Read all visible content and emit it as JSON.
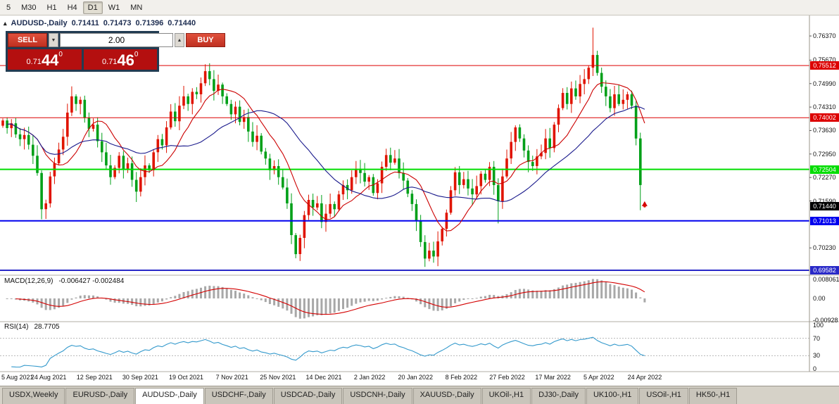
{
  "toolbar": {
    "timeframes": [
      "5",
      "M30",
      "H1",
      "H4",
      "D1",
      "W1",
      "MN"
    ],
    "active": "D1"
  },
  "quote": {
    "toggle_icon": "▴",
    "symbol": "AUDUSD-,Daily",
    "open": "0.71411",
    "high": "0.71473",
    "low": "0.71396",
    "close": "0.71440"
  },
  "one_click": {
    "sell_label": "SELL",
    "buy_label": "BUY",
    "volume": "2.00",
    "spin_down_icon": "▼",
    "spin_up_icon": "▲",
    "sell_price": {
      "prefix": "0.71",
      "big": "44",
      "sup": "0"
    },
    "buy_price": {
      "prefix": "0.71",
      "big": "46",
      "sup": "0"
    }
  },
  "chart_data": {
    "type": "candlestick",
    "symbol": "AUDUSD-",
    "timeframe": "Daily",
    "ohlc_current": {
      "open": 0.71411,
      "high": 0.71473,
      "low": 0.71396,
      "close": 0.7144
    },
    "ylim": [
      0.695,
      0.768
    ],
    "y_ticks": [
      "0.76370",
      "0.75670",
      "0.74990",
      "0.74310",
      "0.73630",
      "0.72950",
      "0.72270",
      "0.71590",
      "0.70230"
    ],
    "x_labels": [
      "5 Aug 2021",
      "24 Aug 2021",
      "12 Sep 2021",
      "30 Sep 2021",
      "19 Oct 2021",
      "7 Nov 2021",
      "25 Nov 2021",
      "14 Dec 2021",
      "2 Jan 2022",
      "20 Jan 2022",
      "8 Feb 2022",
      "27 Feb 2022",
      "17 Mar 2022",
      "5 Apr 2022",
      "24 Apr 2022"
    ],
    "closes": [
      0.7392,
      0.737,
      0.7384,
      0.7352,
      0.7338,
      0.735,
      0.7322,
      0.729,
      0.724,
      0.7135,
      0.7152,
      0.723,
      0.7268,
      0.7308,
      0.7345,
      0.7415,
      0.7462,
      0.744,
      0.7452,
      0.74,
      0.7368,
      0.738,
      0.7332,
      0.73,
      0.7262,
      0.7228,
      0.7255,
      0.729,
      0.725,
      0.7268,
      0.722,
      0.7186,
      0.7228,
      0.7262,
      0.7248,
      0.73,
      0.7338,
      0.732,
      0.7372,
      0.7418,
      0.739,
      0.7435,
      0.7462,
      0.744,
      0.7475,
      0.7468,
      0.75,
      0.7535,
      0.7512,
      0.7478,
      0.7496,
      0.7462,
      0.744,
      0.741,
      0.7432,
      0.7388,
      0.7402,
      0.736,
      0.733,
      0.7348,
      0.7302,
      0.7282,
      0.7248,
      0.726,
      0.7228,
      0.7198,
      0.7152,
      0.706,
      0.7005,
      0.7052,
      0.7118,
      0.7162,
      0.714,
      0.7152,
      0.7098,
      0.7122,
      0.715,
      0.7135,
      0.7178,
      0.7205,
      0.719,
      0.7228,
      0.7252,
      0.724,
      0.7215,
      0.7228,
      0.7182,
      0.721,
      0.7258,
      0.7292,
      0.727,
      0.7282,
      0.724,
      0.7218,
      0.718,
      0.715,
      0.7102,
      0.704,
      0.6992,
      0.7015,
      0.6998,
      0.7042,
      0.7078,
      0.7125,
      0.719,
      0.7242,
      0.7205,
      0.7222,
      0.7195,
      0.7178,
      0.7202,
      0.7238,
      0.722,
      0.7258,
      0.7205,
      0.7158,
      0.723,
      0.7282,
      0.733,
      0.7372,
      0.734,
      0.7305,
      0.7272,
      0.726,
      0.7288,
      0.7298,
      0.734,
      0.7312,
      0.738,
      0.7428,
      0.7472,
      0.744,
      0.7485,
      0.7462,
      0.7498,
      0.7512,
      0.7545,
      0.7582,
      0.753,
      0.749,
      0.7462,
      0.7428,
      0.7468,
      0.744,
      0.7452,
      0.7468,
      0.7435,
      0.734,
      0.7205,
      0.7144
    ],
    "wick_overrides": {
      "9": {
        "l": 0.7106
      },
      "47": {
        "h": 0.7555
      },
      "68": {
        "l": 0.6993
      },
      "98": {
        "l": 0.6968
      },
      "115": {
        "l": 0.7094
      },
      "137": {
        "h": 0.7661
      },
      "148": {
        "l": 0.7132
      },
      "149": {
        "o": 0.71411,
        "h": 0.71473,
        "l": 0.71396,
        "c": 0.7144
      }
    },
    "hlines": [
      {
        "price": 0.75512,
        "label": "0.75512",
        "color": "#dd0000",
        "width": 1
      },
      {
        "price": 0.74002,
        "label": "0.74002",
        "color": "#dd0000",
        "width": 1
      },
      {
        "price": 0.72504,
        "label": "0.72504",
        "color": "#00dd00",
        "width": 2
      },
      {
        "price": 0.71013,
        "label": "0.71013",
        "color": "#0000ee",
        "width": 2
      },
      {
        "price": 0.69582,
        "label": "0.69582",
        "color": "#2929c8",
        "width": 2
      }
    ],
    "current_price": {
      "value": 0.7144,
      "label": "0.71440",
      "bg": "#000000"
    },
    "marker": {
      "price": 0.715,
      "color": "#d40000"
    },
    "ma_periods": [
      10,
      25
    ],
    "colors": {
      "up": "#e01400",
      "down": "#00a018",
      "ma_fast": "#cc0000",
      "ma_slow": "#1a1a8c",
      "macd_hist": "#a8a8a8",
      "macd_signal": "#d40000",
      "rsi": "#3399cc"
    },
    "macd": {
      "label": "MACD(12,26,9)",
      "values": "-0.006427 -0.002484",
      "ylim": [
        -0.0095,
        0.0095
      ],
      "y_ticks": [
        {
          "v": 0.008061,
          "t": "0.008061"
        },
        {
          "v": 0,
          "t": "0.00"
        },
        {
          "v": -0.00928,
          "t": "-0.00928"
        }
      ]
    },
    "rsi": {
      "label": "RSI(14)",
      "value": "28.7705",
      "ylim": [
        0,
        100
      ],
      "levels": [
        70,
        30
      ],
      "y_ticks": [
        {
          "v": 100,
          "t": "100"
        },
        {
          "v": 70,
          "t": "70"
        },
        {
          "v": 30,
          "t": "30"
        },
        {
          "v": 0,
          "t": "0"
        }
      ]
    }
  },
  "tabs": {
    "items": [
      "USDX,Weekly",
      "EURUSD-,Daily",
      "AUDUSD-,Daily",
      "USDCHF-,Daily",
      "USDCAD-,Daily",
      "USDCNH-,Daily",
      "XAUUSD-,Daily",
      "UKOil-,H1",
      "DJ30-,Daily",
      "UK100-,H1",
      "USOil-,H1",
      "HK50-,H1"
    ],
    "active_index": 2
  }
}
